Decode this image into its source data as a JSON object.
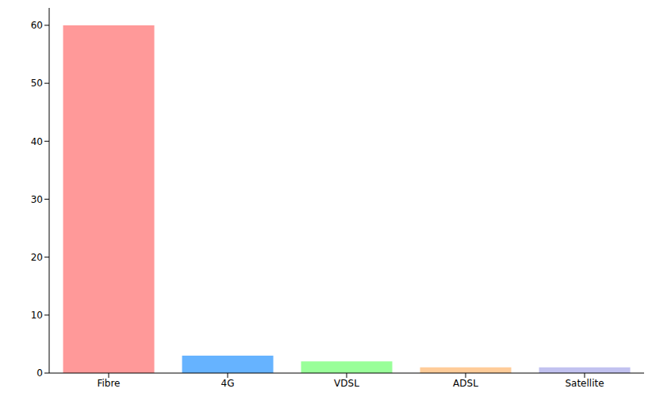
{
  "chart_data": {
    "type": "bar",
    "categories": [
      "Fibre",
      "4G",
      "VDSL",
      "ADSL",
      "Satellite"
    ],
    "values": [
      60,
      3,
      2,
      1,
      1
    ],
    "colors": [
      "#ff9999",
      "#66b3ff",
      "#99ff99",
      "#ffcc99",
      "#c2c2f0"
    ],
    "ylim": [
      0,
      63
    ],
    "yticks": [
      0,
      10,
      20,
      30,
      40,
      50,
      60
    ],
    "grid": false
  }
}
